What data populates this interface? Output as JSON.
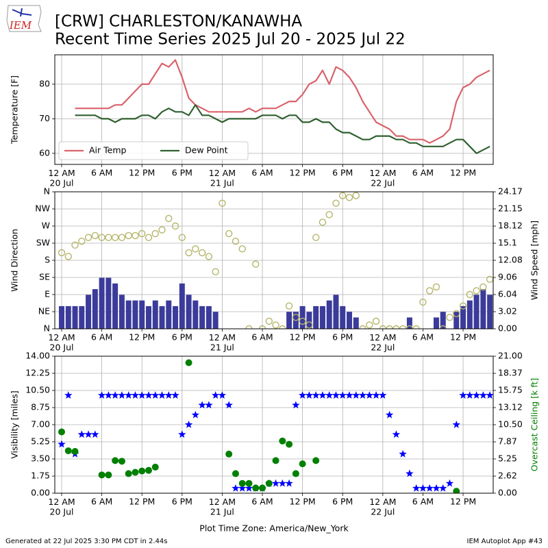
{
  "header": {
    "title": "[CRW] CHARLESTON/KANAWHA",
    "subtitle": "Recent Time Series 2025 Jul 20 - 2025 Jul 22",
    "logo_text": "IEM"
  },
  "footer": {
    "left": "Generated at 22 Jul 2025 3:30 PM CDT in 2.44s",
    "right": "IEM Autoplot App #43"
  },
  "chart_data": [
    {
      "type": "line",
      "ylabel": "Temperature [F]",
      "ylim": [
        56.8,
        88.5
      ],
      "yticks": [
        60,
        70,
        80
      ],
      "grid": true,
      "legend": "lower left",
      "xlim": [
        "2025-07-20 00:00",
        "2025-07-22 16:30"
      ],
      "xticks": [
        {
          "value": "2025-07-20 00:00",
          "label": "12 AM\n20 Jul"
        },
        {
          "value": "2025-07-20 06:00",
          "label": "6 AM"
        },
        {
          "value": "2025-07-20 12:00",
          "label": "12 PM"
        },
        {
          "value": "2025-07-20 18:00",
          "label": "6 PM"
        },
        {
          "value": "2025-07-21 00:00",
          "label": "12 AM\n21 Jul"
        },
        {
          "value": "2025-07-21 06:00",
          "label": "6 AM"
        },
        {
          "value": "2025-07-21 12:00",
          "label": "12 PM"
        },
        {
          "value": "2025-07-21 18:00",
          "label": "6 PM"
        },
        {
          "value": "2025-07-22 00:00",
          "label": "12 AM\n22 Jul"
        },
        {
          "value": "2025-07-22 06:00",
          "label": "6 AM"
        },
        {
          "value": "2025-07-22 12:00",
          "label": "12 PM"
        }
      ],
      "x": [
        "2025-07-20 02:00",
        "2025-07-20 03:00",
        "2025-07-20 04:00",
        "2025-07-20 05:00",
        "2025-07-20 06:00",
        "2025-07-20 07:00",
        "2025-07-20 08:00",
        "2025-07-20 09:00",
        "2025-07-20 10:00",
        "2025-07-20 11:00",
        "2025-07-20 12:00",
        "2025-07-20 13:00",
        "2025-07-20 14:00",
        "2025-07-20 15:00",
        "2025-07-20 16:00",
        "2025-07-20 17:00",
        "2025-07-20 18:00",
        "2025-07-20 19:00",
        "2025-07-20 20:00",
        "2025-07-20 21:00",
        "2025-07-20 22:00",
        "2025-07-20 23:00",
        "2025-07-21 00:00",
        "2025-07-21 01:00",
        "2025-07-21 02:00",
        "2025-07-21 03:00",
        "2025-07-21 04:00",
        "2025-07-21 05:00",
        "2025-07-21 06:00",
        "2025-07-21 07:00",
        "2025-07-21 08:00",
        "2025-07-21 09:00",
        "2025-07-21 10:00",
        "2025-07-21 11:00",
        "2025-07-21 12:00",
        "2025-07-21 13:00",
        "2025-07-21 14:00",
        "2025-07-21 15:00",
        "2025-07-21 16:00",
        "2025-07-21 17:00",
        "2025-07-21 18:00",
        "2025-07-21 19:00",
        "2025-07-21 20:00",
        "2025-07-21 21:00",
        "2025-07-21 22:00",
        "2025-07-21 23:00",
        "2025-07-22 00:00",
        "2025-07-22 01:00",
        "2025-07-22 02:00",
        "2025-07-22 03:00",
        "2025-07-22 04:00",
        "2025-07-22 05:00",
        "2025-07-22 06:00",
        "2025-07-22 07:00",
        "2025-07-22 08:00",
        "2025-07-22 09:00",
        "2025-07-22 10:00",
        "2025-07-22 11:00",
        "2025-07-22 12:00",
        "2025-07-22 13:00",
        "2025-07-22 14:00",
        "2025-07-22 15:00",
        "2025-07-22 16:00"
      ],
      "series": [
        {
          "name": "Air Temp",
          "type": "line",
          "color": "#d9626b",
          "values": [
            73,
            73,
            73,
            73,
            73,
            73,
            74,
            74,
            76,
            78,
            80,
            80,
            83,
            86,
            85,
            87,
            82,
            76,
            74,
            73,
            72,
            72,
            72,
            72,
            72,
            72,
            73,
            72,
            73,
            73,
            73,
            74,
            75,
            75,
            77,
            80,
            81,
            84,
            80,
            85,
            84,
            82,
            79,
            75,
            72,
            69,
            68,
            67,
            65,
            65,
            64,
            64,
            64,
            63,
            64,
            65,
            67,
            75,
            79,
            80,
            82,
            83,
            84
          ]
        },
        {
          "name": "Dew Point",
          "type": "line",
          "color": "#2f5f2f",
          "values": [
            71,
            71,
            71,
            71,
            70,
            70,
            69,
            70,
            70,
            70,
            71,
            71,
            70,
            72,
            73,
            72,
            72,
            71,
            74,
            71,
            71,
            70,
            69,
            70,
            70,
            70,
            70,
            70,
            71,
            71,
            71,
            70,
            71,
            71,
            69,
            69,
            70,
            69,
            69,
            67,
            66,
            66,
            65,
            64,
            64,
            65,
            65,
            65,
            64,
            64,
            63,
            63,
            62,
            62,
            62,
            62,
            63,
            64,
            64,
            62,
            60,
            61,
            62
          ]
        }
      ]
    },
    {
      "type": "bar",
      "ylabel": "Wind Direction",
      "y2label": "Wind Speed [mph]",
      "ylim": [
        0,
        360
      ],
      "yticks": [
        {
          "value": 0,
          "label": "N"
        },
        {
          "value": 45,
          "label": "NE"
        },
        {
          "value": 90,
          "label": "E"
        },
        {
          "value": 135,
          "label": "SE"
        },
        {
          "value": 180,
          "label": "S"
        },
        {
          "value": 225,
          "label": "SW"
        },
        {
          "value": 270,
          "label": "W"
        },
        {
          "value": 315,
          "label": "NW"
        },
        {
          "value": 360,
          "label": "N"
        }
      ],
      "y2lim": [
        0,
        24.17
      ],
      "y2ticks": [
        {
          "value": 0,
          "label": "0.00"
        },
        3.02,
        6.04,
        9.06,
        12.08,
        15.1,
        18.12,
        21.15,
        24.17
      ],
      "grid": true,
      "xlim": [
        "2025-07-20 00:00",
        "2025-07-22 16:30"
      ],
      "xticks": [
        {
          "value": "2025-07-20 00:00",
          "label": "12 AM\n20 Jul"
        },
        {
          "value": "2025-07-20 06:00",
          "label": "6 AM"
        },
        {
          "value": "2025-07-20 12:00",
          "label": "12 PM"
        },
        {
          "value": "2025-07-20 18:00",
          "label": "6 PM"
        },
        {
          "value": "2025-07-21 00:00",
          "label": "12 AM\n21 Jul"
        },
        {
          "value": "2025-07-21 06:00",
          "label": "6 AM"
        },
        {
          "value": "2025-07-21 12:00",
          "label": "12 PM"
        },
        {
          "value": "2025-07-21 18:00",
          "label": "6 PM"
        },
        {
          "value": "2025-07-22 00:00",
          "label": "12 AM\n22 Jul"
        },
        {
          "value": "2025-07-22 06:00",
          "label": "6 AM"
        },
        {
          "value": "2025-07-22 12:00",
          "label": "12 PM"
        }
      ],
      "x": [
        "2025-07-20 00:00",
        "2025-07-20 01:00",
        "2025-07-20 02:00",
        "2025-07-20 03:00",
        "2025-07-20 04:00",
        "2025-07-20 05:00",
        "2025-07-20 06:00",
        "2025-07-20 07:00",
        "2025-07-20 08:00",
        "2025-07-20 09:00",
        "2025-07-20 10:00",
        "2025-07-20 11:00",
        "2025-07-20 12:00",
        "2025-07-20 13:00",
        "2025-07-20 14:00",
        "2025-07-20 15:00",
        "2025-07-20 16:00",
        "2025-07-20 17:00",
        "2025-07-20 18:00",
        "2025-07-20 19:00",
        "2025-07-20 20:00",
        "2025-07-20 21:00",
        "2025-07-20 22:00",
        "2025-07-20 23:00",
        "2025-07-21 00:00",
        "2025-07-21 01:00",
        "2025-07-21 02:00",
        "2025-07-21 03:00",
        "2025-07-21 04:00",
        "2025-07-21 05:00",
        "2025-07-21 06:00",
        "2025-07-21 07:00",
        "2025-07-21 08:00",
        "2025-07-21 09:00",
        "2025-07-21 10:00",
        "2025-07-21 11:00",
        "2025-07-21 12:00",
        "2025-07-21 13:00",
        "2025-07-21 14:00",
        "2025-07-21 15:00",
        "2025-07-21 16:00",
        "2025-07-21 17:00",
        "2025-07-21 18:00",
        "2025-07-21 19:00",
        "2025-07-21 20:00",
        "2025-07-21 21:00",
        "2025-07-21 22:00",
        "2025-07-21 23:00",
        "2025-07-22 00:00",
        "2025-07-22 01:00",
        "2025-07-22 02:00",
        "2025-07-22 03:00",
        "2025-07-22 04:00",
        "2025-07-22 05:00",
        "2025-07-22 06:00",
        "2025-07-22 07:00",
        "2025-07-22 08:00",
        "2025-07-22 09:00",
        "2025-07-22 10:00",
        "2025-07-22 11:00",
        "2025-07-22 12:00",
        "2025-07-22 13:00",
        "2025-07-22 14:00",
        "2025-07-22 15:00",
        "2025-07-22 16:00"
      ],
      "series": [
        {
          "type": "bar",
          "axis": "y2",
          "color": "#3b3b9b",
          "values": [
            4,
            4,
            4,
            4,
            6,
            7,
            9,
            9,
            8,
            6,
            5,
            5,
            5,
            4,
            5,
            4,
            5,
            4,
            8,
            6,
            5,
            4,
            4,
            3,
            0,
            0,
            0,
            0,
            0,
            0,
            0,
            0,
            0,
            0,
            3,
            3,
            4,
            3,
            4,
            4,
            5,
            6,
            4,
            3,
            2,
            0,
            0,
            0,
            0,
            0,
            0,
            0,
            2,
            0,
            0,
            0,
            2,
            3,
            0,
            3,
            4,
            5,
            6,
            7,
            6
          ]
        },
        {
          "type": "scatter",
          "marker": "circle-open",
          "color": "#b5b56a",
          "values": [
            200,
            190,
            220,
            230,
            240,
            245,
            240,
            240,
            240,
            240,
            245,
            245,
            250,
            240,
            250,
            260,
            290,
            270,
            240,
            200,
            210,
            200,
            190,
            150,
            330,
            250,
            230,
            210,
            0,
            170,
            0,
            20,
            10,
            0,
            60,
            30,
            20,
            10,
            240,
            280,
            300,
            330,
            350,
            345,
            350,
            0,
            10,
            20,
            0,
            0,
            0,
            0,
            0,
            0,
            70,
            100,
            110,
            0,
            30,
            40,
            60,
            90,
            100,
            110,
            130
          ]
        }
      ]
    },
    {
      "type": "scatter",
      "ylabel": "Visibility [miles]",
      "y2label": "Overcast Ceiling [k ft]",
      "y2label_color": "#008000",
      "ylim": [
        0,
        14
      ],
      "yticks": [
        {
          "value": 0,
          "label": "0.00"
        },
        1.75,
        {
          "value": 3.5,
          "label": "3.50"
        },
        5.25,
        {
          "value": 7,
          "label": "7.00"
        },
        8.75,
        {
          "value": 10.5,
          "label": "10.50"
        },
        12.25,
        {
          "value": 14,
          "label": "14.00"
        }
      ],
      "y2lim": [
        0,
        21
      ],
      "y2ticks": [
        {
          "value": 0,
          "label": "0.00"
        },
        2.62,
        5.25,
        7.87,
        {
          "value": 10.5,
          "label": "10.50"
        },
        13.12,
        15.75,
        18.37,
        {
          "value": 21,
          "label": "21.00"
        }
      ],
      "grid": true,
      "xlabel": "Plot Time Zone: America/New_York",
      "xlim": [
        "2025-07-20 00:00",
        "2025-07-22 16:30"
      ],
      "xticks": [
        {
          "value": "2025-07-20 00:00",
          "label": "12 AM\n20 Jul"
        },
        {
          "value": "2025-07-20 06:00",
          "label": "6 AM"
        },
        {
          "value": "2025-07-20 12:00",
          "label": "12 PM"
        },
        {
          "value": "2025-07-20 18:00",
          "label": "6 PM"
        },
        {
          "value": "2025-07-21 00:00",
          "label": "12 AM\n21 Jul"
        },
        {
          "value": "2025-07-21 06:00",
          "label": "6 AM"
        },
        {
          "value": "2025-07-21 12:00",
          "label": "12 PM"
        },
        {
          "value": "2025-07-21 18:00",
          "label": "6 PM"
        },
        {
          "value": "2025-07-22 00:00",
          "label": "12 AM\n22 Jul"
        },
        {
          "value": "2025-07-22 06:00",
          "label": "6 AM"
        },
        {
          "value": "2025-07-22 12:00",
          "label": "12 PM"
        }
      ],
      "x": [
        "2025-07-20 00:00",
        "2025-07-20 01:00",
        "2025-07-20 02:00",
        "2025-07-20 03:00",
        "2025-07-20 04:00",
        "2025-07-20 05:00",
        "2025-07-20 06:00",
        "2025-07-20 07:00",
        "2025-07-20 08:00",
        "2025-07-20 09:00",
        "2025-07-20 10:00",
        "2025-07-20 11:00",
        "2025-07-20 12:00",
        "2025-07-20 13:00",
        "2025-07-20 14:00",
        "2025-07-20 15:00",
        "2025-07-20 16:00",
        "2025-07-20 17:00",
        "2025-07-20 18:00",
        "2025-07-20 19:00",
        "2025-07-20 20:00",
        "2025-07-20 21:00",
        "2025-07-20 22:00",
        "2025-07-20 23:00",
        "2025-07-21 00:00",
        "2025-07-21 01:00",
        "2025-07-21 02:00",
        "2025-07-21 03:00",
        "2025-07-21 04:00",
        "2025-07-21 05:00",
        "2025-07-21 06:00",
        "2025-07-21 07:00",
        "2025-07-21 08:00",
        "2025-07-21 09:00",
        "2025-07-21 10:00",
        "2025-07-21 11:00",
        "2025-07-21 12:00",
        "2025-07-21 13:00",
        "2025-07-21 14:00",
        "2025-07-21 15:00",
        "2025-07-21 16:00",
        "2025-07-21 17:00",
        "2025-07-21 18:00",
        "2025-07-21 19:00",
        "2025-07-21 20:00",
        "2025-07-21 21:00",
        "2025-07-21 22:00",
        "2025-07-21 23:00",
        "2025-07-22 00:00",
        "2025-07-22 01:00",
        "2025-07-22 02:00",
        "2025-07-22 03:00",
        "2025-07-22 04:00",
        "2025-07-22 05:00",
        "2025-07-22 06:00",
        "2025-07-22 07:00",
        "2025-07-22 08:00",
        "2025-07-22 09:00",
        "2025-07-22 10:00",
        "2025-07-22 11:00",
        "2025-07-22 12:00",
        "2025-07-22 13:00",
        "2025-07-22 14:00",
        "2025-07-22 15:00",
        "2025-07-22 16:00"
      ],
      "series": [
        {
          "type": "scatter",
          "marker": "star",
          "color": "#0000ff",
          "values": [
            5,
            10,
            4,
            6,
            6,
            6,
            10,
            10,
            10,
            10,
            10,
            10,
            10,
            10,
            10,
            10,
            10,
            10,
            6,
            7,
            8,
            9,
            9,
            10,
            10,
            9,
            0.5,
            0.5,
            0.5,
            0.5,
            0.5,
            1,
            1,
            1,
            1,
            9,
            10,
            10,
            10,
            10,
            10,
            10,
            10,
            10,
            10,
            10,
            10,
            10,
            10,
            8,
            6,
            4,
            2,
            0.5,
            0.5,
            0.5,
            0.5,
            0.5,
            1,
            7,
            10,
            10,
            10,
            10,
            10
          ]
        },
        {
          "type": "scatter",
          "marker": "circle",
          "axis": "y2",
          "color": "#008000",
          "values": [
            9.4,
            6.5,
            6.4,
            null,
            null,
            null,
            2.8,
            2.8,
            5,
            4.9,
            3,
            3.2,
            3.4,
            3.5,
            4,
            null,
            null,
            null,
            null,
            20,
            null,
            null,
            null,
            null,
            null,
            6,
            3,
            1.5,
            1.5,
            0.8,
            0.8,
            1.5,
            5,
            8,
            7.5,
            3,
            4.5,
            null,
            5,
            null,
            null,
            null,
            null,
            null,
            null,
            null,
            null,
            null,
            null,
            null,
            null,
            null,
            null,
            null,
            null,
            null,
            null,
            null,
            null,
            0.3,
            null,
            null,
            null,
            null,
            null
          ]
        }
      ]
    }
  ]
}
